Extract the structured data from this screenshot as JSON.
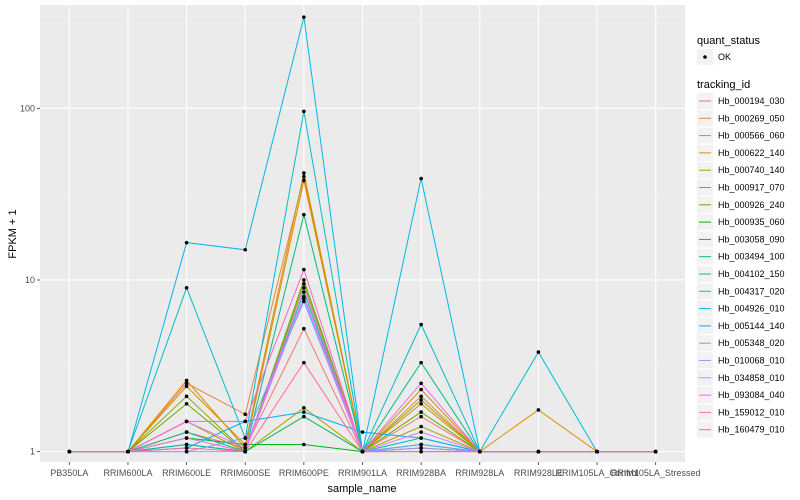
{
  "chart_data": {
    "type": "line",
    "xlabel": "sample_name",
    "ylabel": "FPKM + 1",
    "y_scale": "log10",
    "ylim": [
      0.87,
      400
    ],
    "y_ticks": [
      1,
      10,
      100
    ],
    "y_tick_labels": [
      "1",
      "10",
      "100"
    ],
    "grid": true,
    "legend_position": "right",
    "categories": [
      "PB350LA",
      "RRIM600LA",
      "RRIM600LE",
      "RRIM600SE",
      "RRIM600PE",
      "RRIM901LA",
      "RRIM928BA",
      "RRIM928LA",
      "RRIM928LE",
      "RRIM105LA_Control",
      "RRIM105LA_Stressed"
    ],
    "shape_legend": {
      "title": "quant_status",
      "items": [
        "OK"
      ]
    },
    "color_legend_title": "tracking_id",
    "series": [
      {
        "name": "Hb_000194_030",
        "color": "#F8766D",
        "values": [
          1,
          1,
          1.3,
          1.05,
          5.2,
          1,
          1.6,
          1,
          1,
          1,
          1
        ]
      },
      {
        "name": "Hb_000269_050",
        "color": "#EE8043",
        "values": [
          1,
          1,
          2.5,
          1.65,
          40,
          1,
          2.1,
          1,
          1,
          1,
          1
        ]
      },
      {
        "name": "Hb_000566_060",
        "color": "#DF8B00",
        "values": [
          1,
          1,
          2.6,
          1.05,
          38,
          1,
          1.9,
          1,
          1.75,
          1,
          1
        ]
      },
      {
        "name": "Hb_000622_140",
        "color": "#CB9600",
        "values": [
          1,
          1,
          2.4,
          1.1,
          42,
          1,
          2.3,
          1,
          1,
          1,
          1
        ]
      },
      {
        "name": "Hb_000740_140",
        "color": "#B09F00",
        "values": [
          1,
          1,
          1.5,
          1.0,
          1.8,
          1,
          1.4,
          1,
          1,
          1,
          1
        ]
      },
      {
        "name": "Hb_000917_070",
        "color": "#8FA600",
        "values": [
          1,
          1,
          2.1,
          1.0,
          9.5,
          1,
          2.0,
          1,
          1,
          1,
          1
        ]
      },
      {
        "name": "Hb_000926_240",
        "color": "#62AC00",
        "values": [
          1,
          1,
          1.9,
          1.0,
          10,
          1,
          1.7,
          1,
          1,
          1,
          1
        ]
      },
      {
        "name": "Hb_000935_060",
        "color": "#00B31A",
        "values": [
          1,
          1,
          1.2,
          1.1,
          1.1,
          1,
          1.05,
          1,
          1,
          1,
          1
        ]
      },
      {
        "name": "Hb_003058_090",
        "color": "#00B757",
        "values": [
          1,
          1,
          1.1,
          1.0,
          1.6,
          1,
          1.1,
          1,
          1,
          1,
          1
        ]
      },
      {
        "name": "Hb_003494_100",
        "color": "#00BB83",
        "values": [
          1,
          1,
          1.3,
          1.0,
          24,
          1,
          3.3,
          1,
          1,
          1,
          1
        ]
      },
      {
        "name": "Hb_004102_150",
        "color": "#00BDAA",
        "values": [
          1,
          1,
          1.1,
          1.0,
          8.5,
          1,
          1.2,
          1,
          1,
          1,
          1
        ]
      },
      {
        "name": "Hb_004317_020",
        "color": "#00BDCD",
        "values": [
          1,
          1,
          9.0,
          1.2,
          96,
          1,
          5.5,
          1,
          3.8,
          1,
          1
        ]
      },
      {
        "name": "Hb_004926_010",
        "color": "#00B8E7",
        "values": [
          1,
          1,
          16.5,
          15,
          340,
          1,
          39,
          1,
          1,
          1,
          1
        ]
      },
      {
        "name": "Hb_005144_140",
        "color": "#00AFF8",
        "values": [
          1,
          1,
          1.05,
          1.5,
          1.7,
          1.3,
          1.2,
          1,
          1,
          1,
          1
        ]
      },
      {
        "name": "Hb_005348_020",
        "color": "#6EA1FF",
        "values": [
          1,
          1,
          1.0,
          1.2,
          7.5,
          1,
          1.1,
          1,
          1,
          1,
          1
        ]
      },
      {
        "name": "Hb_010068_010",
        "color": "#B08FFF",
        "values": [
          1,
          1,
          1.0,
          1.0,
          8.0,
          1,
          1.05,
          1,
          1,
          1,
          1
        ]
      },
      {
        "name": "Hb_034858_010",
        "color": "#DE7DFF",
        "values": [
          1,
          1,
          1.5,
          1.05,
          7.8,
          1,
          1.3,
          1,
          1,
          1,
          1
        ]
      },
      {
        "name": "Hb_093084_040",
        "color": "#F56BE9",
        "values": [
          1,
          1,
          1.2,
          1.0,
          9.0,
          1,
          2.5,
          1,
          1,
          1,
          1
        ]
      },
      {
        "name": "Hb_159012_010",
        "color": "#FF63C3",
        "values": [
          1,
          1,
          1.5,
          1.5,
          11.5,
          1,
          1.0,
          1,
          1,
          1,
          1
        ]
      },
      {
        "name": "Hb_160479_010",
        "color": "#FF699C",
        "values": [
          1,
          1,
          1.05,
          1.0,
          3.3,
          1,
          1.0,
          1,
          1,
          1,
          1
        ]
      }
    ]
  }
}
